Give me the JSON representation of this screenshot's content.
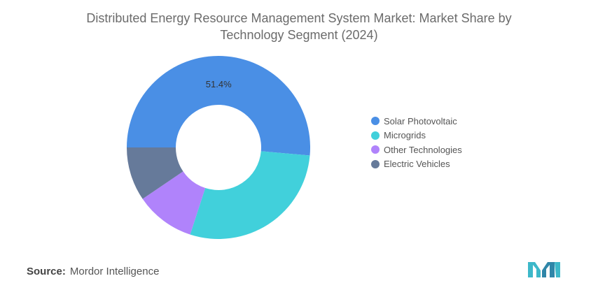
{
  "chart_data": {
    "type": "pie",
    "title": "Distributed Energy Resource Management System Market: Market Share by Technology Segment (2024)",
    "categories": [
      "Solar Photovoltaic",
      "Microgrids",
      "Other Technologies",
      "Electric Vehicles"
    ],
    "values": [
      51.4,
      28.6,
      10.5,
      9.5
    ],
    "colors": [
      "#4a8fe5",
      "#41d0db",
      "#b083fb",
      "#667a9a"
    ],
    "data_labels": [
      "51.4%",
      "",
      "",
      ""
    ],
    "legend_placement": "right"
  },
  "legend": {
    "items": [
      {
        "label": "Solar Photovoltaic",
        "color": "#4a8fe5"
      },
      {
        "label": "Microgrids",
        "color": "#41d0db"
      },
      {
        "label": "Other Technologies",
        "color": "#b083fb"
      },
      {
        "label": "Electric Vehicles",
        "color": "#667a9a"
      }
    ]
  },
  "footer": {
    "source_label": "Source:",
    "source_value": "Mordor Intelligence",
    "logo_icon": "mordor-intelligence-logo-icon",
    "logo_color": "#3db8c9"
  }
}
